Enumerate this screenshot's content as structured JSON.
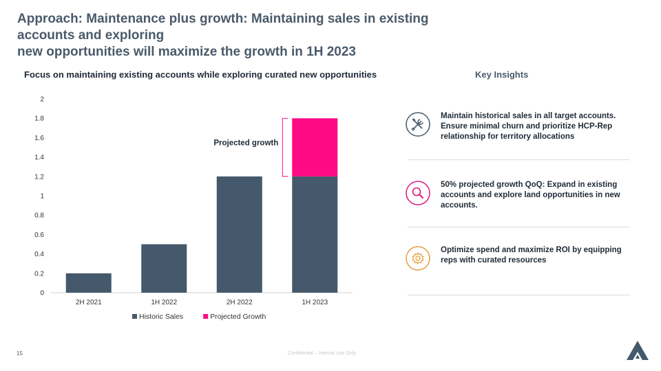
{
  "title": {
    "line1_a": "Approach: Maintenance plus growth: ",
    "line1_b": "Maintaining sales in existing accounts and exploring",
    "line2": "new opportunities will maximize the growth in 1H 2023"
  },
  "chart_heading": "Focus on maintaining existing accounts while exploring curated new opportunities",
  "insights_heading": "Key Insights",
  "chart_data": {
    "type": "bar",
    "stacked": true,
    "categories": [
      "2H 2021",
      "1H 2022",
      "2H 2022",
      "1H 2023"
    ],
    "series": [
      {
        "name": "Historic Sales",
        "values": [
          0.2,
          0.5,
          1.2,
          1.2
        ],
        "color": "#44596b"
      },
      {
        "name": "Projected Growth",
        "values": [
          0,
          0,
          0,
          0.6
        ],
        "color": "#ff0a85"
      }
    ],
    "ylim": [
      0,
      2
    ],
    "yticks": [
      "0",
      "0.2",
      "0.4",
      "0.6",
      "0.8",
      "1",
      "1.2",
      "1.4",
      "1.6",
      "1.8",
      "2"
    ],
    "annotation": "Projected growth",
    "legend_position": "bottom",
    "grid": false
  },
  "insights": [
    {
      "icon": "tools-icon",
      "color": "#44596b",
      "text": "Maintain historical sales in all target accounts. Ensure minimal churn and prioritize HCP-Rep relationship for territory allocations"
    },
    {
      "icon": "magnifier-icon",
      "color": "#e0157f",
      "text": "50% projected growth QoQ: Expand in existing accounts and explore land opportunities in new accounts."
    },
    {
      "icon": "gear-icon",
      "color": "#e89a3c",
      "text": "Optimize spend and maximize ROI by equipping reps with curated resources"
    }
  ],
  "page_number": "15",
  "footer": "Confidential – Internal Use Only"
}
